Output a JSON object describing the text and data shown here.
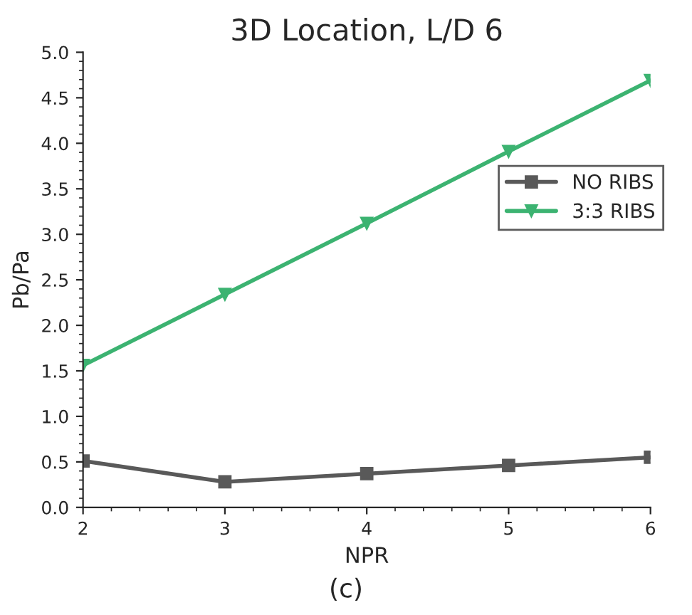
{
  "chart_data": {
    "type": "line",
    "title": "3D Location, L/D 6",
    "xlabel": "NPR",
    "ylabel": "Pb/Pa",
    "x": [
      2,
      3,
      4,
      5,
      6
    ],
    "series": [
      {
        "name": "NO RIBS",
        "color": "#595959",
        "marker": "square",
        "values": [
          0.51,
          0.28,
          0.37,
          0.46,
          0.55
        ]
      },
      {
        "name": "3:3 RIBS",
        "color": "#3cb371",
        "marker": "triangle",
        "values": [
          1.56,
          2.34,
          3.12,
          3.91,
          4.69
        ]
      }
    ],
    "xlim": [
      2,
      6
    ],
    "xticks": [
      2,
      3,
      4,
      5,
      6
    ],
    "ylim": [
      0,
      5
    ],
    "yticks": [
      {
        "value": 0,
        "label": "0.0"
      },
      {
        "value": 0.5,
        "label": "0.5"
      },
      {
        "value": 1,
        "label": "1.0"
      },
      {
        "value": 1.5,
        "label": "1.5"
      },
      {
        "value": 2,
        "label": "2.0"
      },
      {
        "value": 2.5,
        "label": "2.5"
      },
      {
        "value": 3,
        "label": "3.0"
      },
      {
        "value": 3.5,
        "label": "3.5"
      },
      {
        "value": 4,
        "label": "4.0"
      },
      {
        "value": 4.5,
        "label": "4.5"
      },
      {
        "value": 5,
        "label": "5.0"
      }
    ],
    "grid": false,
    "legend": "right",
    "line_style": "solid",
    "annotations": [
      "(c)"
    ]
  }
}
